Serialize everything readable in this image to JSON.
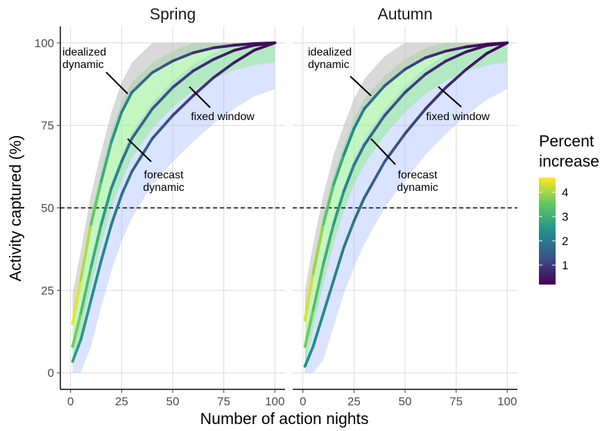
{
  "chart_data": {
    "type": "line",
    "xlabel": "Number of action nights",
    "ylabel": "Activity captured (%)",
    "xlim": [
      -5,
      105
    ],
    "ylim": [
      -5,
      105
    ],
    "x_ticks": [
      0,
      25,
      50,
      75,
      100
    ],
    "y_ticks": [
      0,
      25,
      50,
      75,
      100
    ],
    "grid": true,
    "reference_line": {
      "y": 50,
      "style": "dashed"
    },
    "legend": {
      "title_lines": [
        "Percent",
        "increase"
      ],
      "type": "colorbar",
      "palette": [
        "#440154",
        "#3b528b",
        "#21908c",
        "#5dc863",
        "#fde725"
      ],
      "range": [
        0.2,
        4.6
      ],
      "ticks": [
        1,
        2,
        3,
        4
      ],
      "position": "right"
    },
    "panels": [
      {
        "title": "Spring",
        "series": [
          {
            "key": "idealized",
            "x": [
              1,
              5,
              10,
              15,
              20,
              25,
              30,
              40,
              50,
              60,
              70,
              80,
              90,
              100
            ],
            "y": [
              15,
              28,
              45,
              58,
              70,
              79,
              85,
              91,
              94.5,
              97,
              98.5,
              99.3,
              99.8,
              100
            ],
            "pct_increase": [
              4.5,
              4.4,
              3.8,
              3.2,
              2.7,
              2.3,
              2,
              1.6,
              1.3,
              1,
              0.7,
              0.5,
              0.4,
              0.3
            ]
          },
          {
            "key": "forecast",
            "x": [
              1,
              5,
              10,
              15,
              20,
              25,
              30,
              40,
              50,
              60,
              70,
              80,
              90,
              100
            ],
            "y": [
              8,
              18,
              32,
              45,
              56,
              64,
              71,
              80,
              86.5,
              91.5,
              95,
              97.7,
              99.3,
              100
            ],
            "pct_increase": [
              3.8,
              3.5,
              3.1,
              2.8,
              2.4,
              2.1,
              1.8,
              1.5,
              1.2,
              0.9,
              0.7,
              0.5,
              0.4,
              0.3
            ]
          },
          {
            "key": "fixed",
            "x": [
              1,
              5,
              10,
              15,
              20,
              25,
              30,
              40,
              50,
              60,
              70,
              80,
              90,
              100
            ],
            "y": [
              3.5,
              10,
              22,
              34,
              45,
              54,
              61,
              71,
              78,
              84,
              89.5,
              94,
              97.8,
              100
            ],
            "pct_increase": [
              2.7,
              2.6,
              2.5,
              2.3,
              2.1,
              1.9,
              1.7,
              1.4,
              1.2,
              1,
              0.8,
              0.6,
              0.4,
              0.3
            ]
          }
        ],
        "annotations": [
          {
            "text_lines": [
              "idealized",
              "dynamic"
            ],
            "series": "idealized"
          },
          {
            "text_lines": [
              "forecast",
              "dynamic"
            ],
            "series": "forecast"
          },
          {
            "text_lines": [
              "fixed window"
            ],
            "series": "fixed"
          }
        ]
      },
      {
        "title": "Autumn",
        "series": [
          {
            "key": "idealized",
            "x": [
              1,
              5,
              10,
              15,
              20,
              25,
              30,
              40,
              50,
              60,
              70,
              80,
              90,
              100
            ],
            "y": [
              16,
              30,
              45,
              57,
              66,
              74,
              80,
              87,
              92,
              95.5,
              97.5,
              98.8,
              99.6,
              100
            ],
            "pct_increase": [
              4.5,
              4.2,
              3.7,
              3.1,
              2.6,
              2.2,
              1.9,
              1.5,
              1.2,
              0.9,
              0.7,
              0.5,
              0.3,
              0.2
            ]
          },
          {
            "key": "forecast",
            "x": [
              1,
              5,
              10,
              15,
              20,
              25,
              30,
              40,
              50,
              60,
              70,
              80,
              90,
              100
            ],
            "y": [
              8,
              19,
              33,
              45,
              55,
              63,
              69,
              78,
              85,
              90.5,
              94.5,
              97.3,
              99.2,
              100
            ],
            "pct_increase": [
              3.7,
              3.5,
              3.1,
              2.8,
              2.4,
              2.1,
              1.8,
              1.4,
              1.2,
              0.9,
              0.7,
              0.5,
              0.3,
              0.2
            ]
          },
          {
            "key": "fixed",
            "x": [
              1,
              5,
              10,
              15,
              20,
              25,
              30,
              40,
              50,
              60,
              70,
              80,
              90,
              100
            ],
            "y": [
              2,
              8,
              18,
              28,
              38,
              46,
              53,
              64,
              72.5,
              80,
              86.5,
              92,
              96.8,
              100
            ],
            "pct_increase": [
              2.4,
              2.4,
              2.3,
              2.2,
              2.1,
              1.9,
              1.7,
              1.4,
              1.2,
              1,
              0.8,
              0.6,
              0.4,
              0.2
            ]
          }
        ],
        "annotations": [
          {
            "text_lines": [
              "idealized",
              "dynamic"
            ],
            "series": "idealized"
          },
          {
            "text_lines": [
              "forecast",
              "dynamic"
            ],
            "series": "forecast"
          },
          {
            "text_lines": [
              "fixed window"
            ],
            "series": "fixed"
          }
        ]
      }
    ]
  }
}
